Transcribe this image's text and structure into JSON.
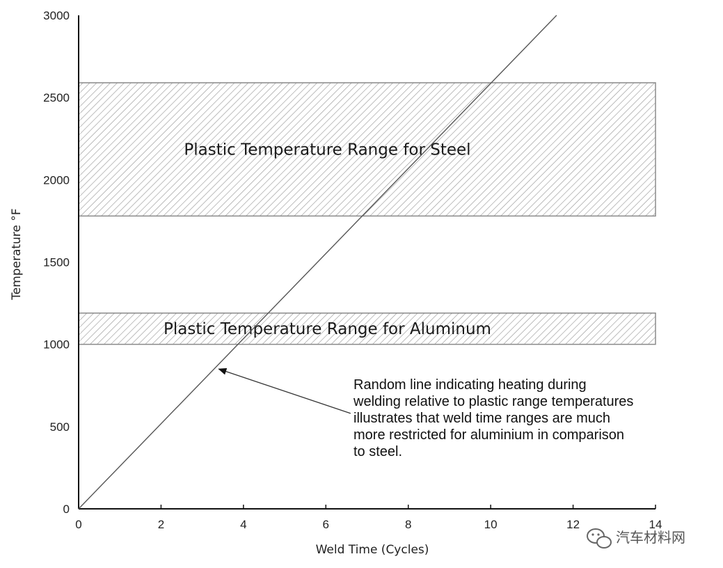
{
  "chart_data": {
    "type": "line",
    "title": "",
    "xlabel": "Weld Time (Cycles)",
    "ylabel": "Temperature °F",
    "xlim": [
      0,
      14
    ],
    "ylim": [
      0,
      3000
    ],
    "xticks": [
      0,
      2,
      4,
      6,
      8,
      10,
      12,
      14
    ],
    "yticks": [
      0,
      500,
      1000,
      1500,
      2000,
      2500,
      3000
    ],
    "grid": false,
    "series": [
      {
        "x": [
          0,
          11.6
        ],
        "y": [
          0,
          3000
        ]
      }
    ],
    "bands": [
      {
        "label": "Plastic Temperature Range for Steel",
        "y0": 1780,
        "y1": 2590,
        "x0": 0,
        "x1": 14
      },
      {
        "label": "Plastic Temperature Range for Aluminum",
        "y0": 1000,
        "y1": 1190,
        "x0": 0,
        "x1": 14
      }
    ],
    "annotation": {
      "lines": [
        "Random line indicating heating during",
        "welding relative to plastic range temperatures",
        "illustrates that weld time ranges are much",
        "more restricted for aluminium in comparison",
        "to steel."
      ],
      "arrow_to": {
        "x": 3.4,
        "y": 850
      },
      "arrow_from": {
        "x": 6.6,
        "y": 580
      }
    }
  },
  "watermark": {
    "text": "汽车材料网",
    "icon": "wechat-icon"
  }
}
